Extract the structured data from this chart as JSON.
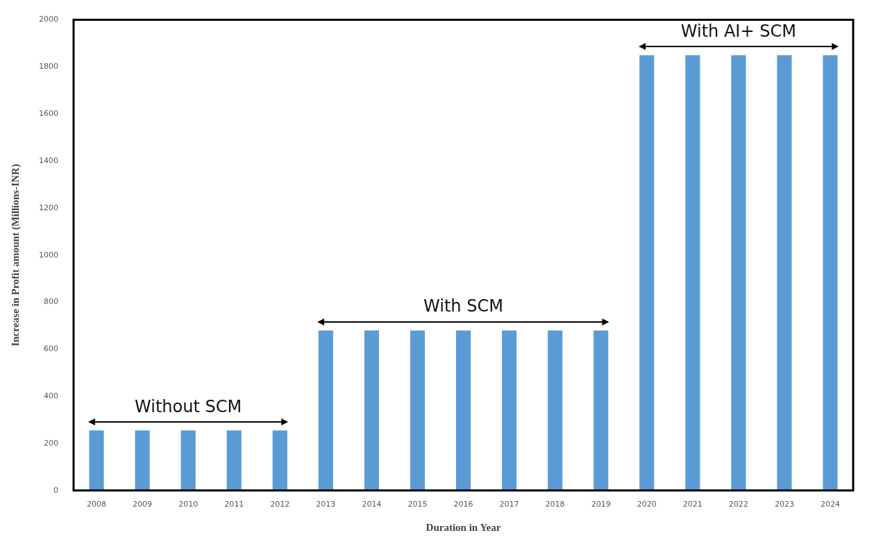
{
  "chart_data": {
    "type": "bar",
    "xlabel": "Duration in Year",
    "ylabel": "Increase in Profit amount (Millions-INR)",
    "categories": [
      "2008",
      "2009",
      "2010",
      "2011",
      "2012",
      "2013",
      "2014",
      "2015",
      "2016",
      "2017",
      "2018",
      "2019",
      "2020",
      "2021",
      "2022",
      "2023",
      "2024"
    ],
    "values": [
      255,
      255,
      255,
      255,
      255,
      680,
      680,
      680,
      680,
      680,
      680,
      680,
      1850,
      1850,
      1850,
      1850,
      1850
    ],
    "color": "#5b9bd5",
    "ylim": [
      0,
      2000
    ],
    "yticks": [
      0,
      200,
      400,
      600,
      800,
      1000,
      1200,
      1400,
      1600,
      1800,
      2000
    ],
    "grid": false,
    "legend": false,
    "annotations": [
      "Without SCM",
      "With SCM",
      "With AI+ SCM"
    ]
  }
}
